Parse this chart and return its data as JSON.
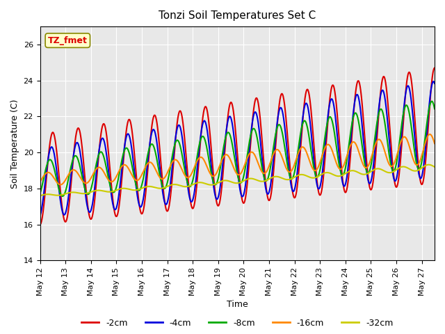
{
  "title": "Tonzi Soil Temperatures Set C",
  "xlabel": "Time",
  "ylabel": "Soil Temperature (C)",
  "ylim": [
    14,
    27
  ],
  "xlim": [
    0,
    15.5
  ],
  "series": {
    "-2cm": {
      "color": "#dd0000",
      "lw": 1.5
    },
    "-4cm": {
      "color": "#0000dd",
      "lw": 1.5
    },
    "-8cm": {
      "color": "#00aa00",
      "lw": 1.5
    },
    "-16cm": {
      "color": "#ff8800",
      "lw": 1.5
    },
    "-32cm": {
      "color": "#cccc00",
      "lw": 1.5
    }
  },
  "legend_labels": [
    "-2cm",
    "-4cm",
    "-8cm",
    "-16cm",
    "-32cm"
  ],
  "legend_colors": [
    "#dd0000",
    "#0000dd",
    "#00aa00",
    "#ff8800",
    "#cccc00"
  ],
  "xtick_labels": [
    "May 12",
    "May 13",
    "May 14",
    "May 15",
    "May 16",
    "May 17",
    "May 18",
    "May 19",
    "May 20",
    "May 21",
    "May 22",
    "May 23",
    "May 24",
    "May 25",
    "May 26",
    "May 27"
  ],
  "bg_color": "#e8e8e8",
  "annotation_text": "TZ_fmet",
  "annotation_color": "#dd0000",
  "annotation_bg": "#ffffcc"
}
